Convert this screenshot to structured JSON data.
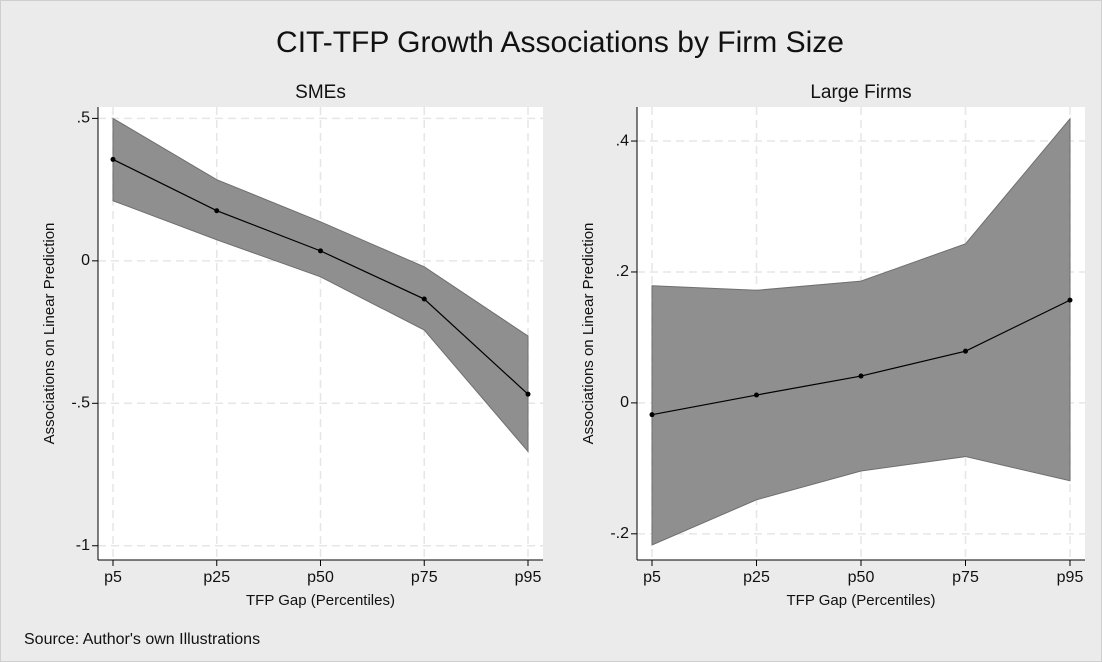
{
  "title": "CIT-TFP Growth Associations by Firm Size",
  "source": "Source: Author's own Illustrations",
  "chart_data": [
    {
      "type": "line",
      "title": "SMEs",
      "x_label": "TFP Gap (Percentiles)",
      "y_label": "Associations on Linear Prediction",
      "categories": [
        "p5",
        "p25",
        "p50",
        "p75",
        "p95"
      ],
      "values": [
        0.356,
        0.176,
        0.035,
        -0.134,
        -0.468
      ],
      "upper": [
        0.5,
        0.285,
        0.137,
        -0.021,
        -0.264
      ],
      "lower": [
        0.211,
        0.074,
        -0.056,
        -0.243,
        -0.669
      ],
      "color": "#000000",
      "band_color": "#8f8f8f",
      "ylim": [
        -1.05,
        0.54
      ],
      "yticks": [
        {
          "value": 0.5,
          "label": ".5"
        },
        0,
        {
          "value": -0.5,
          "label": "-.5"
        },
        -1
      ],
      "grid": true
    },
    {
      "type": "line",
      "title": "Large Firms",
      "x_label": "TFP Gap (Percentiles)",
      "y_label": "Associations on Linear Prediction",
      "categories": [
        "p5",
        "p25",
        "p50",
        "p75",
        "p95"
      ],
      "values": [
        -0.018,
        0.012,
        0.041,
        0.079,
        0.157
      ],
      "upper": [
        0.179,
        0.172,
        0.186,
        0.243,
        0.434
      ],
      "lower": [
        -0.217,
        -0.148,
        -0.104,
        -0.082,
        -0.119
      ],
      "color": "#000000",
      "band_color": "#8f8f8f",
      "ylim": [
        -0.24,
        0.452
      ],
      "yticks": [
        {
          "value": 0.4,
          "label": ".4"
        },
        {
          "value": 0.2,
          "label": ".2"
        },
        0,
        {
          "value": -0.2,
          "label": "-.2"
        }
      ],
      "grid": true
    }
  ]
}
